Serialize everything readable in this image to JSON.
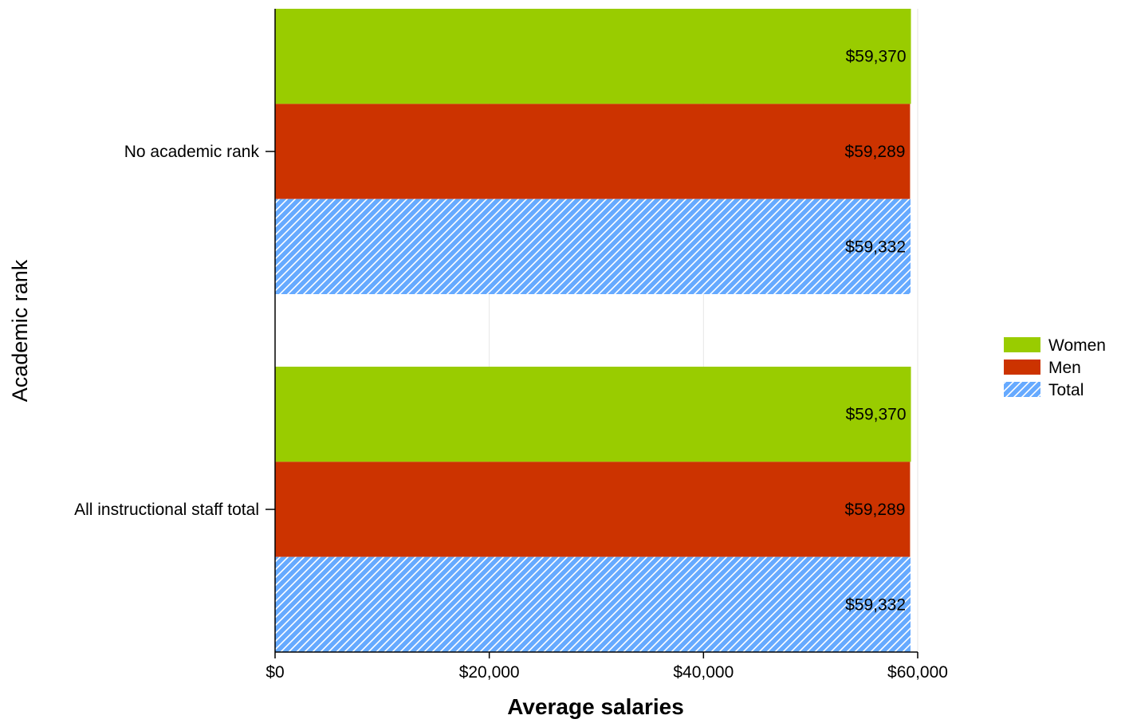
{
  "chart_data": {
    "type": "bar",
    "orientation": "horizontal",
    "categories": [
      "No academic rank",
      "All instructional staff total"
    ],
    "series": [
      {
        "name": "Women",
        "values": [
          59370,
          59370
        ],
        "labels": [
          "$59,370",
          "$59,370"
        ],
        "color": "#99cc00"
      },
      {
        "name": "Men",
        "values": [
          59289,
          59289
        ],
        "labels": [
          "$59,289",
          "$59,289"
        ],
        "color": "#cc3300"
      },
      {
        "name": "Total",
        "values": [
          59332,
          59332
        ],
        "labels": [
          "$59,332",
          "$59,332"
        ],
        "color": "#66aaff",
        "pattern": "diagonal-hatch"
      }
    ],
    "xlabel": "Average salaries",
    "ylabel": "Academic rank",
    "xlim": [
      0,
      60000
    ],
    "xticks": [
      0,
      20000,
      40000,
      60000
    ],
    "xtick_labels": [
      "$0",
      "$20,000",
      "$40,000",
      "$60,000"
    ],
    "grid": true,
    "legend_position": "right"
  }
}
